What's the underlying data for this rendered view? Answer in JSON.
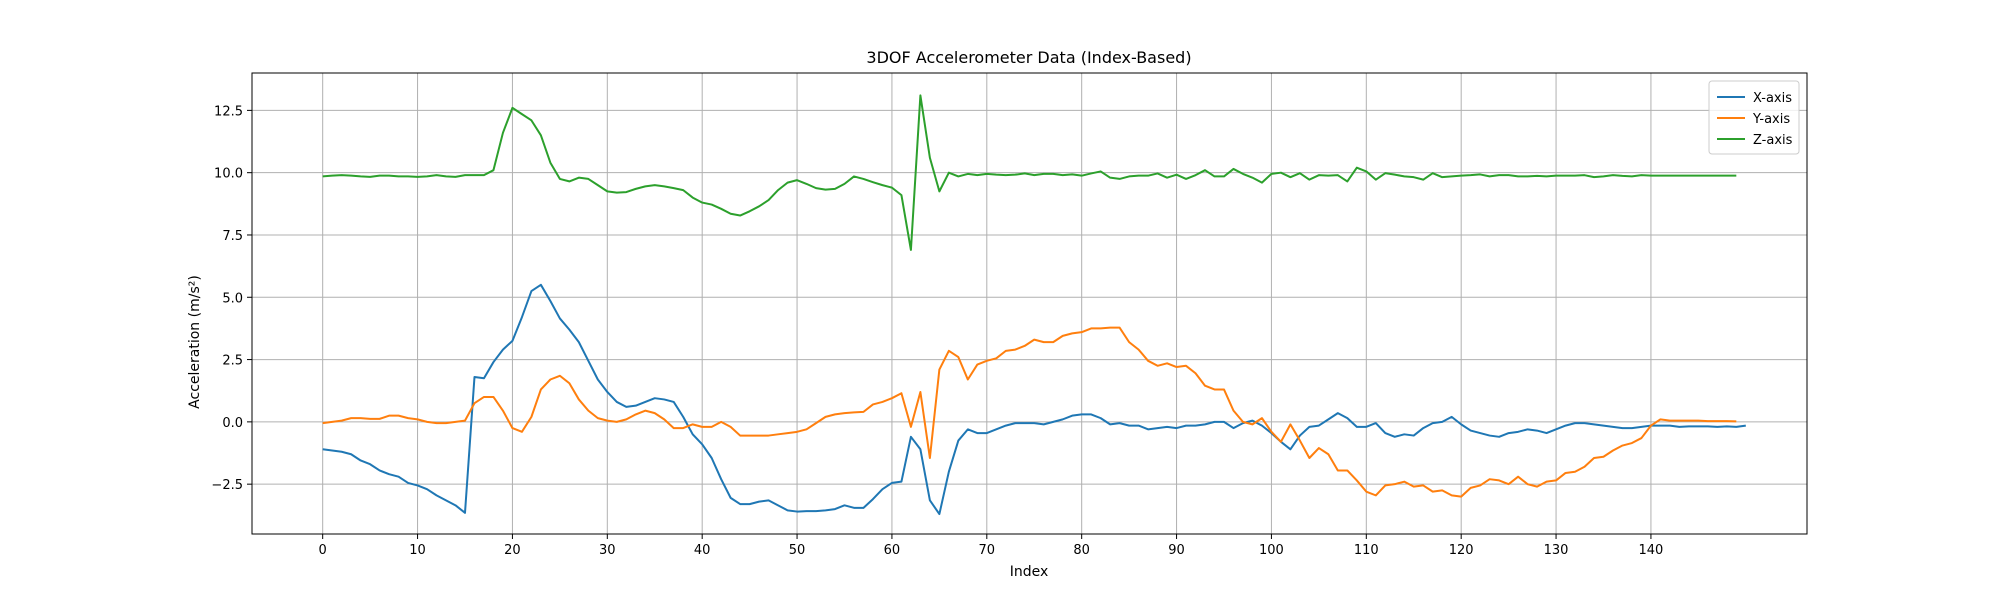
{
  "chart_data": {
    "type": "line",
    "title": "3DOF Accelerometer Data (Index-Based)",
    "xlabel": "Index",
    "ylabel": "Acceleration (m/s²)",
    "xlim": [
      -7.45,
      156.45
    ],
    "ylim": [
      -4.5,
      14.0
    ],
    "xticks": [
      0,
      10,
      20,
      30,
      40,
      50,
      60,
      70,
      80,
      90,
      100,
      110,
      120,
      130,
      140
    ],
    "yticks": [
      -2.5,
      0.0,
      2.5,
      5.0,
      7.5,
      10.0,
      12.5
    ],
    "ytick_labels": [
      "−2.5",
      "0.0",
      "2.5",
      "5.0",
      "7.5",
      "10.0",
      "12.5"
    ],
    "grid": true,
    "legend_position": "top-right",
    "series": [
      {
        "name": "X-axis",
        "color": "#1f77b4",
        "values": [
          -1.1,
          -1.15,
          -1.2,
          -1.3,
          -1.55,
          -1.7,
          -1.95,
          -2.1,
          -2.2,
          -2.45,
          -2.55,
          -2.7,
          -2.95,
          -3.15,
          -3.35,
          -3.65,
          1.8,
          1.75,
          2.4,
          2.9,
          3.25,
          4.2,
          5.25,
          5.5,
          4.85,
          4.15,
          3.7,
          3.2,
          2.45,
          1.7,
          1.2,
          0.8,
          0.6,
          0.65,
          0.8,
          0.95,
          0.9,
          0.8,
          0.2,
          -0.5,
          -0.9,
          -1.45,
          -2.3,
          -3.05,
          -3.3,
          -3.3,
          -3.2,
          -3.15,
          -3.35,
          -3.55,
          -3.6,
          -3.58,
          -3.58,
          -3.55,
          -3.5,
          -3.35,
          -3.45,
          -3.45,
          -3.1,
          -2.7,
          -2.45,
          -2.4,
          -0.6,
          -1.1,
          -3.15,
          -3.7,
          -2.0,
          -0.75,
          -0.3,
          -0.45,
          -0.45,
          -0.3,
          -0.15,
          -0.05,
          -0.05,
          -0.05,
          -0.1,
          0.0,
          0.1,
          0.25,
          0.3,
          0.3,
          0.15,
          -0.1,
          -0.05,
          -0.15,
          -0.15,
          -0.3,
          -0.25,
          -0.2,
          -0.25,
          -0.15,
          -0.15,
          -0.1,
          0.0,
          0.0,
          -0.25,
          -0.05,
          0.05,
          -0.15,
          -0.45,
          -0.8,
          -1.1,
          -0.55,
          -0.2,
          -0.15,
          0.1,
          0.35,
          0.15,
          -0.2,
          -0.2,
          -0.05,
          -0.45,
          -0.6,
          -0.5,
          -0.55,
          -0.25,
          -0.05,
          0.0,
          0.2,
          -0.1,
          -0.35,
          -0.45,
          -0.55,
          -0.6,
          -0.45,
          -0.4,
          -0.3,
          -0.35,
          -0.45,
          -0.3,
          -0.15,
          -0.05,
          -0.05,
          -0.1,
          -0.15,
          -0.2,
          -0.25,
          -0.25,
          -0.2,
          -0.15,
          -0.15,
          -0.15,
          -0.2,
          -0.18,
          -0.18,
          -0.18,
          -0.2,
          -0.18,
          -0.2,
          -0.15
        ]
      },
      {
        "name": "Y-axis",
        "color": "#ff7f0e",
        "values": [
          -0.05,
          0.0,
          0.05,
          0.15,
          0.15,
          0.12,
          0.12,
          0.25,
          0.25,
          0.15,
          0.1,
          0.0,
          -0.05,
          -0.05,
          0.0,
          0.05,
          0.75,
          1.0,
          1.0,
          0.45,
          -0.25,
          -0.4,
          0.2,
          1.3,
          1.7,
          1.85,
          1.55,
          0.9,
          0.45,
          0.15,
          0.05,
          0.0,
          0.1,
          0.3,
          0.45,
          0.35,
          0.1,
          -0.25,
          -0.25,
          -0.1,
          -0.2,
          -0.2,
          0.0,
          -0.2,
          -0.55,
          -0.55,
          -0.55,
          -0.55,
          -0.5,
          -0.45,
          -0.4,
          -0.3,
          -0.05,
          0.2,
          0.3,
          0.35,
          0.38,
          0.4,
          0.7,
          0.8,
          0.95,
          1.15,
          -0.2,
          1.2,
          -1.45,
          2.1,
          2.85,
          2.6,
          1.7,
          2.3,
          2.45,
          2.55,
          2.85,
          2.9,
          3.05,
          3.3,
          3.2,
          3.2,
          3.45,
          3.55,
          3.6,
          3.75,
          3.75,
          3.78,
          3.78,
          3.2,
          2.9,
          2.45,
          2.25,
          2.35,
          2.2,
          2.25,
          1.95,
          1.45,
          1.3,
          1.3,
          0.45,
          0.0,
          -0.1,
          0.15,
          -0.4,
          -0.8,
          -0.1,
          -0.75,
          -1.45,
          -1.05,
          -1.3,
          -1.95,
          -1.95,
          -2.35,
          -2.8,
          -2.95,
          -2.55,
          -2.5,
          -2.4,
          -2.6,
          -2.55,
          -2.8,
          -2.75,
          -2.95,
          -3.0,
          -2.65,
          -2.55,
          -2.3,
          -2.35,
          -2.5,
          -2.2,
          -2.5,
          -2.6,
          -2.4,
          -2.35,
          -2.05,
          -2.0,
          -1.8,
          -1.45,
          -1.4,
          -1.15,
          -0.95,
          -0.85,
          -0.65,
          -0.15,
          0.1,
          0.05,
          0.05,
          0.05,
          0.05,
          0.03,
          0.03,
          0.03,
          0.02
        ]
      },
      {
        "name": "Z-axis",
        "color": "#2ca02c",
        "values": [
          9.85,
          9.88,
          9.9,
          9.88,
          9.85,
          9.83,
          9.88,
          9.88,
          9.85,
          9.85,
          9.83,
          9.85,
          9.9,
          9.85,
          9.83,
          9.9,
          9.9,
          9.9,
          10.1,
          11.6,
          12.6,
          12.35,
          12.1,
          11.5,
          10.4,
          9.75,
          9.65,
          9.8,
          9.75,
          9.5,
          9.25,
          9.2,
          9.22,
          9.35,
          9.45,
          9.5,
          9.45,
          9.38,
          9.3,
          9.0,
          8.8,
          8.72,
          8.55,
          8.35,
          8.28,
          8.45,
          8.65,
          8.9,
          9.3,
          9.6,
          9.7,
          9.55,
          9.38,
          9.32,
          9.35,
          9.55,
          9.85,
          9.75,
          9.62,
          9.5,
          9.4,
          9.1,
          6.9,
          13.1,
          10.6,
          9.25,
          10.0,
          9.85,
          9.95,
          9.9,
          9.95,
          9.92,
          9.9,
          9.92,
          9.97,
          9.9,
          9.95,
          9.95,
          9.9,
          9.93,
          9.88,
          9.97,
          10.05,
          9.8,
          9.75,
          9.85,
          9.88,
          9.88,
          9.97,
          9.8,
          9.92,
          9.75,
          9.9,
          10.1,
          9.85,
          9.85,
          10.15,
          9.95,
          9.8,
          9.6,
          9.95,
          10.0,
          9.82,
          9.98,
          9.72,
          9.9,
          9.88,
          9.9,
          9.65,
          10.2,
          10.05,
          9.72,
          9.98,
          9.92,
          9.85,
          9.82,
          9.72,
          9.98,
          9.82,
          9.85,
          9.88,
          9.9,
          9.93,
          9.85,
          9.9,
          9.9,
          9.85,
          9.85,
          9.87,
          9.85,
          9.88,
          9.88,
          9.88,
          9.9,
          9.82,
          9.85,
          9.9,
          9.87,
          9.85,
          9.9,
          9.88,
          9.88,
          9.88,
          9.88,
          9.88,
          9.88,
          9.88,
          9.88,
          9.88,
          9.88
        ]
      }
    ]
  }
}
